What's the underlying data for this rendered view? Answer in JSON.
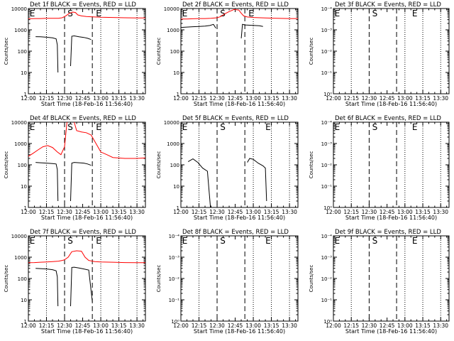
{
  "figure": {
    "x_axis_title": "Start Time (18-Feb-16 11:56:40)",
    "y_axis_title": "Counts/sec",
    "x_tick_labels": [
      "12:00",
      "12:15",
      "12:30",
      "12:45",
      "13:00",
      "13:15",
      "13:30"
    ],
    "colors": {
      "events": "#000000",
      "lld": "#ff0000",
      "axes": "#000000"
    }
  },
  "chart_data": [
    {
      "type": "line",
      "title": "Det 1f BLACK = Events, RED = LLD",
      "ylabel": "Counts/sec",
      "xlabel": "Start Time (18-Feb-16 11:56:40)",
      "x_unit": "minutes after 12:00",
      "xlim": [
        0,
        97
      ],
      "ylim": [
        1,
        10000
      ],
      "yscale": "log",
      "y_tick_labels": [
        "1",
        "10",
        "100",
        "1000",
        "10000"
      ],
      "dotted_lines": [
        15,
        60,
        75,
        90
      ],
      "dashed_lines": [
        30,
        53
      ],
      "markers": [
        {
          "text": "E",
          "x": 1
        },
        {
          "text": "S",
          "x": 32.5
        },
        {
          "text": "E",
          "x": 56
        }
      ],
      "series": [
        {
          "name": "Events",
          "color": "#000000",
          "segments": [
            {
              "x": [
                6,
                10,
                15,
                20,
                23,
                24,
                24.5
              ],
              "y": [
                480,
                470,
                450,
                420,
                380,
                200,
                10
              ]
            },
            {
              "x": [
                35,
                36,
                38,
                42,
                46,
                49,
                52
              ],
              "y": [
                20,
                500,
                520,
                470,
                440,
                400,
                350
              ]
            }
          ]
        },
        {
          "name": "LLD",
          "color": "#ff0000",
          "segments": [
            {
              "x": [
                0,
                5,
                10,
                15,
                20,
                25,
                28,
                31,
                34,
                37,
                39,
                41,
                44,
                48,
                55,
                60,
                70,
                80,
                90,
                97
              ],
              "y": [
                3300,
                3400,
                3400,
                3500,
                3500,
                3500,
                3700,
                4500,
                6000,
                6800,
                6500,
                5000,
                4500,
                4200,
                4000,
                3900,
                3800,
                3700,
                3600,
                3600
              ]
            }
          ]
        }
      ]
    },
    {
      "type": "line",
      "title": "Det 2f BLACK = Events, RED = LLD",
      "ylabel": "Counts/sec",
      "xlabel": "Start Time (18-Feb-16 11:56:40)",
      "x_unit": "minutes after 12:00",
      "xlim": [
        0,
        97
      ],
      "ylim": [
        1,
        10000
      ],
      "yscale": "log",
      "y_tick_labels": [
        "1",
        "10",
        "100",
        "1000",
        "10000"
      ],
      "dotted_lines": [
        15,
        60,
        75,
        90
      ],
      "dashed_lines": [
        30,
        53
      ],
      "markers": [
        {
          "text": "E",
          "x": 1
        },
        {
          "text": "S",
          "x": 32.5
        },
        {
          "text": "E",
          "x": 56
        }
      ],
      "series": [
        {
          "name": "Events",
          "color": "#000000",
          "segments": [
            {
              "x": [
                0,
                5,
                10,
                15,
                20,
                24,
                27,
                29
              ],
              "y": [
                1300,
                1350,
                1400,
                1450,
                1500,
                1600,
                1800,
                1200
              ]
            },
            {
              "x": [
                50,
                51,
                53,
                57,
                61,
                65,
                68
              ],
              "y": [
                400,
                1800,
                1700,
                1650,
                1600,
                1550,
                1450
              ]
            }
          ]
        },
        {
          "name": "LLD",
          "color": "#ff0000",
          "segments": [
            {
              "x": [
                0,
                5,
                10,
                15,
                20,
                25,
                30,
                33,
                36,
                40,
                44,
                48,
                50,
                52,
                55,
                60,
                70,
                80,
                90,
                97
              ],
              "y": [
                3200,
                3200,
                3300,
                3400,
                3400,
                3500,
                3700,
                4200,
                5500,
                7200,
                9000,
                8500,
                6000,
                4500,
                4000,
                3800,
                3600,
                3500,
                3400,
                3400
              ]
            }
          ]
        }
      ]
    },
    {
      "type": "line",
      "title": "Det 3f BLACK = Events, RED = LLD",
      "ylabel": "Counts/sec",
      "xlabel": "Start Time (18-Feb-16 11:56:40)",
      "x_unit": "minutes after 12:00",
      "xlim": [
        0,
        97
      ],
      "ylim": [
        1,
        0.0001
      ],
      "yscale": "log",
      "y_tick_labels": [
        "10⁰",
        "10⁻¹",
        "10⁻²",
        "10⁻³",
        "10⁻⁴"
      ],
      "dotted_lines": [
        15,
        60,
        75,
        90
      ],
      "dashed_lines": [
        30,
        53
      ],
      "markers": [
        {
          "text": "E",
          "x": 1
        },
        {
          "text": "S",
          "x": 32.5
        },
        {
          "text": "E",
          "x": 66
        }
      ],
      "series": []
    },
    {
      "type": "line",
      "title": "Det 4f BLACK = Events, RED = LLD",
      "ylabel": "Counts/sec",
      "xlabel": "Start Time (18-Feb-16 11:56:40)",
      "x_unit": "minutes after 12:00",
      "xlim": [
        0,
        97
      ],
      "ylim": [
        1,
        10000
      ],
      "yscale": "log",
      "y_tick_labels": [
        "1",
        "10",
        "100",
        "1000",
        "10000"
      ],
      "dotted_lines": [
        15,
        60,
        75,
        90
      ],
      "dashed_lines": [
        30,
        53
      ],
      "markers": [
        {
          "text": "E",
          "x": 1
        },
        {
          "text": "S",
          "x": 32.5
        },
        {
          "text": "E",
          "x": 56
        }
      ],
      "series": [
        {
          "name": "Events",
          "color": "#000000",
          "segments": [
            {
              "x": [
                6,
                10,
                15,
                20,
                23,
                24,
                24.5
              ],
              "y": [
                130,
                125,
                120,
                115,
                110,
                60,
                2
              ]
            },
            {
              "x": [
                35,
                36,
                38,
                42,
                46,
                49,
                52
              ],
              "y": [
                2,
                120,
                130,
                125,
                120,
                110,
                95
              ]
            }
          ]
        },
        {
          "name": "LLD",
          "color": "#ff0000",
          "segments": [
            {
              "x": [
                0,
                4,
                8,
                12,
                16,
                20,
                24,
                27,
                30,
                32
              ],
              "y": [
                250,
                350,
                500,
                700,
                800,
                650,
                400,
                300,
                700,
                10000
              ]
            },
            {
              "x": [
                38,
                40,
                44,
                48,
                52,
                56,
                60,
                65,
                70,
                80,
                90,
                97
              ],
              "y": [
                10000,
                4000,
                3500,
                3200,
                2500,
                1000,
                400,
                300,
                220,
                200,
                200,
                210
              ]
            }
          ]
        }
      ]
    },
    {
      "type": "line",
      "title": "Det 5f BLACK = Events, RED = LLD",
      "ylabel": "Counts/sec",
      "xlabel": "Start Time (18-Feb-16 11:56:40)",
      "x_unit": "minutes after 12:00",
      "xlim": [
        0,
        97
      ],
      "ylim": [
        1,
        10000
      ],
      "yscale": "log",
      "y_tick_labels": [
        "1",
        "10",
        "100",
        "1000",
        "10000"
      ],
      "dotted_lines": [
        15,
        60,
        75,
        90
      ],
      "dashed_lines": [
        30,
        53
      ],
      "markers": [
        {
          "text": "E",
          "x": 1
        },
        {
          "text": "S",
          "x": 32.5
        },
        {
          "text": "E",
          "x": 70
        }
      ],
      "series": [
        {
          "name": "Events",
          "color": "#000000",
          "segments": [
            {
              "x": [
                6,
                10,
                14,
                18,
                22,
                24.5
              ],
              "y": [
                140,
                190,
                130,
                70,
                50,
                1
              ]
            },
            {
              "x": [
                55,
                57,
                60,
                64,
                68,
                70,
                71
              ],
              "y": [
                130,
                200,
                180,
                120,
                90,
                70,
                2
              ]
            }
          ]
        }
      ]
    },
    {
      "type": "line",
      "title": "Det 6f BLACK = Events, RED = LLD",
      "ylabel": "Counts/sec",
      "xlabel": "Start Time (18-Feb-16 11:56:40)",
      "x_unit": "minutes after 12:00",
      "xlim": [
        0,
        97
      ],
      "ylim": [
        1,
        0.0001
      ],
      "yscale": "log",
      "y_tick_labels": [
        "10⁰",
        "10⁻¹",
        "10⁻²",
        "10⁻³",
        "10⁻⁴"
      ],
      "dotted_lines": [
        15,
        60,
        75,
        90
      ],
      "dashed_lines": [
        30,
        53
      ],
      "markers": [
        {
          "text": "E",
          "x": 1
        },
        {
          "text": "S",
          "x": 32.5
        },
        {
          "text": "E",
          "x": 66
        }
      ],
      "series": []
    },
    {
      "type": "line",
      "title": "Det 7f BLACK = Events, RED = LLD",
      "ylabel": "Counts/sec",
      "xlabel": "Start Time (18-Feb-16 11:56:40)",
      "x_unit": "minutes after 12:00",
      "xlim": [
        0,
        97
      ],
      "ylim": [
        1,
        10000
      ],
      "yscale": "log",
      "y_tick_labels": [
        "1",
        "10",
        "100",
        "1000",
        "10000"
      ],
      "dotted_lines": [
        15,
        60,
        75,
        90
      ],
      "dashed_lines": [
        30,
        53
      ],
      "markers": [
        {
          "text": "E",
          "x": 1
        },
        {
          "text": "S",
          "x": 32.5
        },
        {
          "text": "E",
          "x": 56
        }
      ],
      "series": [
        {
          "name": "Events",
          "color": "#000000",
          "segments": [
            {
              "x": [
                6,
                10,
                15,
                20,
                23,
                24,
                24.5
              ],
              "y": [
                300,
                290,
                280,
                260,
                230,
                120,
                5
              ]
            },
            {
              "x": [
                35,
                36,
                38,
                42,
                46,
                50,
                53
              ],
              "y": [
                5,
                330,
                340,
                310,
                280,
                250,
                8
              ]
            }
          ]
        },
        {
          "name": "LLD",
          "color": "#ff0000",
          "segments": [
            {
              "x": [
                0,
                5,
                10,
                15,
                20,
                25,
                28,
                30,
                33,
                36,
                40,
                44,
                47,
                50,
                55,
                60,
                70,
                80,
                90,
                97
              ],
              "y": [
                550,
                560,
                580,
                600,
                620,
                650,
                700,
                750,
                1000,
                1800,
                2000,
                1900,
                1000,
                700,
                620,
                600,
                580,
                560,
                550,
                550
              ]
            }
          ]
        }
      ]
    },
    {
      "type": "line",
      "title": "Det 8f BLACK = Events, RED = LLD",
      "ylabel": "Counts/sec",
      "xlabel": "Start Time (18-Feb-16 11:56:40)",
      "x_unit": "minutes after 12:00",
      "xlim": [
        0,
        97
      ],
      "ylim": [
        1,
        0.0001
      ],
      "yscale": "log",
      "y_tick_labels": [
        "10⁰",
        "10⁻¹",
        "10⁻²",
        "10⁻³",
        "10⁻⁴"
      ],
      "dotted_lines": [
        15,
        60,
        75,
        90
      ],
      "dashed_lines": [
        30,
        53
      ],
      "markers": [
        {
          "text": "E",
          "x": 1
        },
        {
          "text": "S",
          "x": 32.5
        },
        {
          "text": "E",
          "x": 70
        }
      ],
      "series": []
    },
    {
      "type": "line",
      "title": "Det 9f BLACK = Events, RED = LLD",
      "ylabel": "Counts/sec",
      "xlabel": "Start Time (18-Feb-16 11:56:40)",
      "x_unit": "minutes after 12:00",
      "xlim": [
        0,
        97
      ],
      "ylim": [
        1,
        0.0001
      ],
      "yscale": "log",
      "y_tick_labels": [
        "10⁰",
        "10⁻¹",
        "10⁻²",
        "10⁻³",
        "10⁻⁴"
      ],
      "dotted_lines": [
        15,
        60,
        75,
        90
      ],
      "dashed_lines": [
        30,
        53
      ],
      "markers": [
        {
          "text": "E",
          "x": 1
        },
        {
          "text": "S",
          "x": 32.5
        },
        {
          "text": "E",
          "x": 66
        }
      ],
      "series": []
    }
  ]
}
